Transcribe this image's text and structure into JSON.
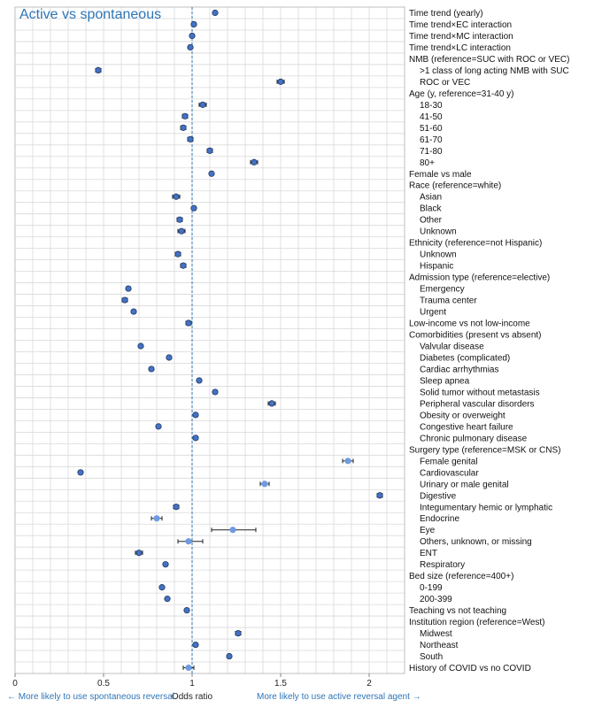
{
  "chart_data": {
    "type": "forest",
    "title": "Active vs spontaneous",
    "xlabel": "Odds ratio",
    "xlim": [
      0,
      2.2
    ],
    "xticks": [
      0,
      0.5,
      1,
      1.5,
      2
    ],
    "xtick_labels": [
      "0",
      "0.5",
      "1",
      "1.5",
      "2"
    ],
    "reference_line": 1,
    "grid": true,
    "annotation_left": "← More likely to use spontaneous reversal",
    "annotation_right": "More likely to use active reversal agent →",
    "rows": [
      {
        "label": "Time trend (yearly)",
        "or": 1.13,
        "lo": 1.12,
        "hi": 1.14,
        "indent": false
      },
      {
        "label": "Time trend×EC interaction",
        "or": 1.01,
        "lo": 1.0,
        "hi": 1.02,
        "indent": false
      },
      {
        "label": "Time trend×MC interaction",
        "or": 1.0,
        "lo": 0.99,
        "hi": 1.01,
        "indent": false
      },
      {
        "label": "Time trend×LC interaction",
        "or": 0.99,
        "lo": 0.98,
        "hi": 1.0,
        "indent": false
      },
      {
        "label": "NMB (reference=SUC with ROC or VEC)",
        "or": null,
        "indent": false
      },
      {
        "label": ">1 class of long acting NMB with SUC",
        "or": 0.47,
        "lo": 0.455,
        "hi": 0.485,
        "indent": true
      },
      {
        "label": "ROC or VEC",
        "or": 1.5,
        "lo": 1.48,
        "hi": 1.52,
        "indent": true
      },
      {
        "label": "Age (y, reference=31-40 y)",
        "or": null,
        "indent": false
      },
      {
        "label": "18-30",
        "or": 1.06,
        "lo": 1.04,
        "hi": 1.08,
        "indent": true
      },
      {
        "label": "41-50",
        "or": 0.96,
        "lo": 0.945,
        "hi": 0.975,
        "indent": true
      },
      {
        "label": "51-60",
        "or": 0.95,
        "lo": 0.935,
        "hi": 0.965,
        "indent": true
      },
      {
        "label": "61-70",
        "or": 0.99,
        "lo": 0.975,
        "hi": 1.005,
        "indent": true
      },
      {
        "label": "71-80",
        "or": 1.1,
        "lo": 1.085,
        "hi": 1.115,
        "indent": true
      },
      {
        "label": "80+",
        "or": 1.35,
        "lo": 1.33,
        "hi": 1.37,
        "indent": true
      },
      {
        "label": "Female vs male",
        "or": 1.11,
        "lo": 1.1,
        "hi": 1.12,
        "indent": false
      },
      {
        "label": "Race (reference=white)",
        "or": null,
        "indent": false
      },
      {
        "label": "Asian",
        "or": 0.91,
        "lo": 0.89,
        "hi": 0.93,
        "indent": true
      },
      {
        "label": "Black",
        "or": 1.01,
        "lo": 1.0,
        "hi": 1.02,
        "indent": true
      },
      {
        "label": "Other",
        "or": 0.93,
        "lo": 0.915,
        "hi": 0.945,
        "indent": true
      },
      {
        "label": "Unknown",
        "or": 0.94,
        "lo": 0.92,
        "hi": 0.96,
        "indent": true
      },
      {
        "label": "Ethnicity (reference=not Hispanic)",
        "or": null,
        "indent": false
      },
      {
        "label": "Unknown",
        "or": 0.92,
        "lo": 0.905,
        "hi": 0.935,
        "indent": true
      },
      {
        "label": "Hispanic",
        "or": 0.95,
        "lo": 0.935,
        "hi": 0.965,
        "indent": true
      },
      {
        "label": "Admission type (reference=elective)",
        "or": null,
        "indent": false
      },
      {
        "label": "Emergency",
        "or": 0.64,
        "lo": 0.63,
        "hi": 0.65,
        "indent": true
      },
      {
        "label": "Trauma center",
        "or": 0.62,
        "lo": 0.605,
        "hi": 0.635,
        "indent": true
      },
      {
        "label": "Urgent",
        "or": 0.67,
        "lo": 0.66,
        "hi": 0.68,
        "indent": true
      },
      {
        "label": "Low-income vs not low-income",
        "or": 0.98,
        "lo": 0.965,
        "hi": 0.995,
        "indent": false
      },
      {
        "label": "Comorbidities (present vs absent)",
        "or": null,
        "indent": false
      },
      {
        "label": "Valvular disease",
        "or": 0.71,
        "lo": 0.7,
        "hi": 0.72,
        "indent": true
      },
      {
        "label": "Diabetes (complicated)",
        "or": 0.87,
        "lo": 0.86,
        "hi": 0.88,
        "indent": true
      },
      {
        "label": "Cardiac arrhythmias",
        "or": 0.77,
        "lo": 0.76,
        "hi": 0.78,
        "indent": true
      },
      {
        "label": "Sleep apnea",
        "or": 1.04,
        "lo": 1.03,
        "hi": 1.05,
        "indent": true
      },
      {
        "label": "Solid tumor without metastasis",
        "or": 1.13,
        "lo": 1.12,
        "hi": 1.14,
        "indent": true
      },
      {
        "label": "Peripheral vascular disorders",
        "or": 1.45,
        "lo": 1.43,
        "hi": 1.47,
        "indent": true
      },
      {
        "label": "Obesity or overweight",
        "or": 1.02,
        "lo": 1.01,
        "hi": 1.03,
        "indent": true
      },
      {
        "label": "Congestive heart failure",
        "or": 0.81,
        "lo": 0.8,
        "hi": 0.82,
        "indent": true
      },
      {
        "label": "Chronic pulmonary disease",
        "or": 1.02,
        "lo": 1.01,
        "hi": 1.03,
        "indent": true
      },
      {
        "label": "Surgery type (reference=MSK or CNS)",
        "or": null,
        "indent": false
      },
      {
        "label": "Female genital",
        "or": 1.88,
        "lo": 1.85,
        "hi": 1.91,
        "indent": true
      },
      {
        "label": "Cardiovascular",
        "or": 0.37,
        "lo": 0.36,
        "hi": 0.38,
        "indent": true
      },
      {
        "label": "Urinary or male genital",
        "or": 1.41,
        "lo": 1.385,
        "hi": 1.435,
        "indent": true
      },
      {
        "label": "Digestive",
        "or": 2.06,
        "lo": 2.045,
        "hi": 2.075,
        "indent": true
      },
      {
        "label": "Integumentary hemic or lymphatic",
        "or": 0.91,
        "lo": 0.895,
        "hi": 0.925,
        "indent": true
      },
      {
        "label": "Endocrine",
        "or": 0.8,
        "lo": 0.77,
        "hi": 0.83,
        "indent": true
      },
      {
        "label": "Eye",
        "or": 1.23,
        "lo": 1.11,
        "hi": 1.36,
        "indent": true
      },
      {
        "label": "Others, unknown, or missing",
        "or": 0.98,
        "lo": 0.92,
        "hi": 1.06,
        "indent": true
      },
      {
        "label": "ENT",
        "or": 0.7,
        "lo": 0.68,
        "hi": 0.72,
        "indent": true
      },
      {
        "label": "Respiratory",
        "or": 0.85,
        "lo": 0.84,
        "hi": 0.86,
        "indent": true
      },
      {
        "label": "Bed size (reference=400+)",
        "or": null,
        "indent": false
      },
      {
        "label": "0-199",
        "or": 0.83,
        "lo": 0.82,
        "hi": 0.84,
        "indent": true
      },
      {
        "label": "200-399",
        "or": 0.86,
        "lo": 0.85,
        "hi": 0.87,
        "indent": true
      },
      {
        "label": "Teaching vs not teaching",
        "or": 0.97,
        "lo": 0.96,
        "hi": 0.98,
        "indent": false
      },
      {
        "label": "Institution region (reference=West)",
        "or": null,
        "indent": false
      },
      {
        "label": "Midwest",
        "or": 1.26,
        "lo": 1.245,
        "hi": 1.275,
        "indent": true
      },
      {
        "label": "Northeast",
        "or": 1.02,
        "lo": 1.01,
        "hi": 1.03,
        "indent": true
      },
      {
        "label": "South",
        "or": 1.21,
        "lo": 1.2,
        "hi": 1.22,
        "indent": true
      },
      {
        "label": "History of COVID vs no COVID",
        "or": 0.98,
        "lo": 0.95,
        "hi": 1.01,
        "indent": false
      }
    ]
  },
  "colors": {
    "title": "#2e75b6",
    "marker_fill": "#4472c4",
    "marker_stroke": "#1f3864",
    "marker_light": "#6f9be0",
    "ci_line": "#222222",
    "ref_line": "#2e75b6",
    "grid": "#d9d9d9",
    "annotation": "#2e75b6"
  }
}
